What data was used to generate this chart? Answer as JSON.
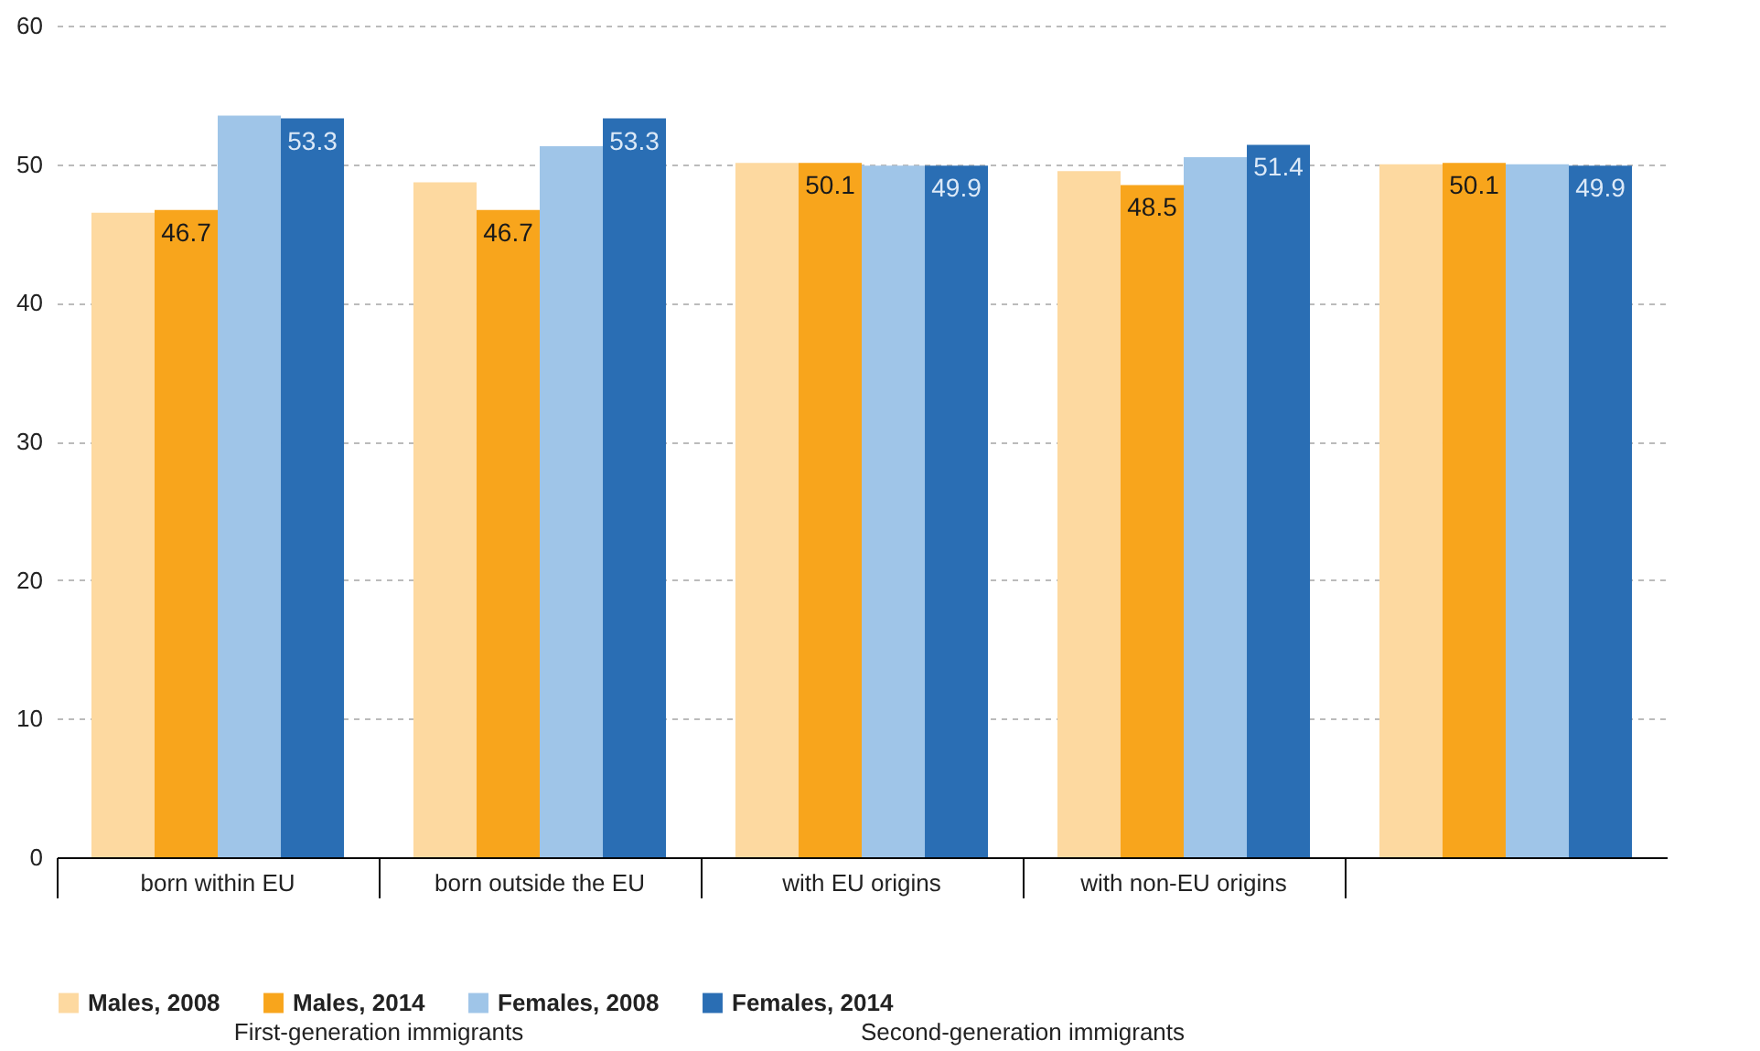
{
  "chart_data": {
    "type": "bar",
    "categories": [
      "born within EU",
      "born outside the EU",
      "with EU origins",
      "with  non-EU origins",
      null
    ],
    "series": [
      {
        "name": "Males, 2008",
        "color": "#fdd9a0",
        "values": [
          46.5,
          48.7,
          50.1,
          49.5,
          50.0
        ]
      },
      {
        "name": "Males, 2014",
        "color": "#f8a51c",
        "values": [
          46.7,
          46.7,
          50.1,
          48.5,
          50.1
        ],
        "value_labels": [
          "46.7",
          "46.7",
          "50.1",
          "48.5",
          "50.1"
        ]
      },
      {
        "name": "Females, 2008",
        "color": "#9fc5e8",
        "values": [
          53.5,
          51.3,
          49.9,
          50.5,
          50.0
        ]
      },
      {
        "name": "Females, 2014",
        "color": "#2a6eb4",
        "values": [
          53.3,
          53.3,
          49.9,
          51.4,
          49.9
        ],
        "value_labels": [
          "53.3",
          "53.3",
          "49.9",
          "51.4",
          "49.9"
        ]
      }
    ],
    "annotations": [
      "First-generation immigrants",
      "Second-generation immigrants"
    ],
    "ylim": [
      0,
      60
    ],
    "yticks": [
      0,
      10,
      20,
      30,
      40,
      50,
      60
    ],
    "grid": "y",
    "legend": "bottom"
  }
}
